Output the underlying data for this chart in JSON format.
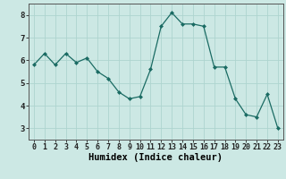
{
  "x": [
    0,
    1,
    2,
    3,
    4,
    5,
    6,
    7,
    8,
    9,
    10,
    11,
    12,
    13,
    14,
    15,
    16,
    17,
    18,
    19,
    20,
    21,
    22,
    23
  ],
  "y": [
    5.8,
    6.3,
    5.8,
    6.3,
    5.9,
    6.1,
    5.5,
    5.2,
    4.6,
    4.3,
    4.4,
    5.6,
    7.5,
    8.1,
    7.6,
    7.6,
    7.5,
    5.7,
    5.7,
    4.3,
    3.6,
    3.5,
    4.5,
    3.0
  ],
  "xlabel": "Humidex (Indice chaleur)",
  "bg_color": "#cce8e4",
  "grid_color": "#aed4cf",
  "line_color": "#1a6b63",
  "marker_color": "#1a6b63",
  "ylim": [
    2.5,
    8.5
  ],
  "xlim": [
    -0.5,
    23.5
  ],
  "yticks": [
    3,
    4,
    5,
    6,
    7,
    8
  ],
  "xticks": [
    0,
    1,
    2,
    3,
    4,
    5,
    6,
    7,
    8,
    9,
    10,
    11,
    12,
    13,
    14,
    15,
    16,
    17,
    18,
    19,
    20,
    21,
    22,
    23
  ],
  "tick_fontsize": 6.0,
  "xlabel_fontsize": 7.5,
  "ytick_fontsize": 6.5
}
